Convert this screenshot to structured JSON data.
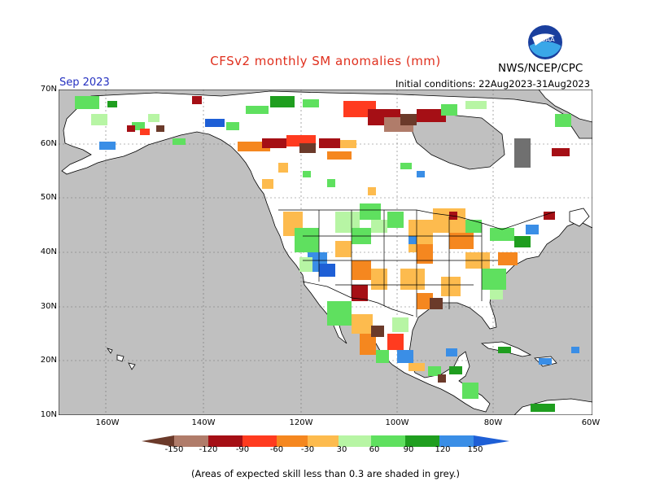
{
  "title": "CFSv2 monthly SM anomalies (mm)",
  "agency": "NWS/NCEP/CPC",
  "logo_text": "NOAA",
  "forecast_month": "Sep 2023",
  "initial_conditions": "Initial conditions: 22Aug2023-31Aug2023",
  "lat_labels": [
    "70N",
    "60N",
    "50N",
    "40N",
    "30N",
    "20N",
    "10N"
  ],
  "lon_labels": [
    "160W",
    "140W",
    "120W",
    "100W",
    "80W",
    "60W"
  ],
  "colorbar": {
    "labels": [
      "-150",
      "-120",
      "-90",
      "-60",
      "-30",
      "30",
      "60",
      "90",
      "120",
      "150"
    ],
    "colors": [
      "#6b3a2a",
      "#b07c6a",
      "#a50f15",
      "#ff3b1f",
      "#f5871f",
      "#fdbb4e",
      "#ffffff",
      "#b7f5a4",
      "#5fe05f",
      "#1f9e1f",
      "#3a8ee6",
      "#1e5fd6"
    ]
  },
  "footnote": "(Areas of expected skill less than 0.3 are shaded in grey.)",
  "colors": {
    "ocean": "#c0c0c0",
    "land": "#ffffff",
    "border": "#000000",
    "grid": "#707070",
    "title": "#e0301e",
    "month": "#2430c0"
  }
}
